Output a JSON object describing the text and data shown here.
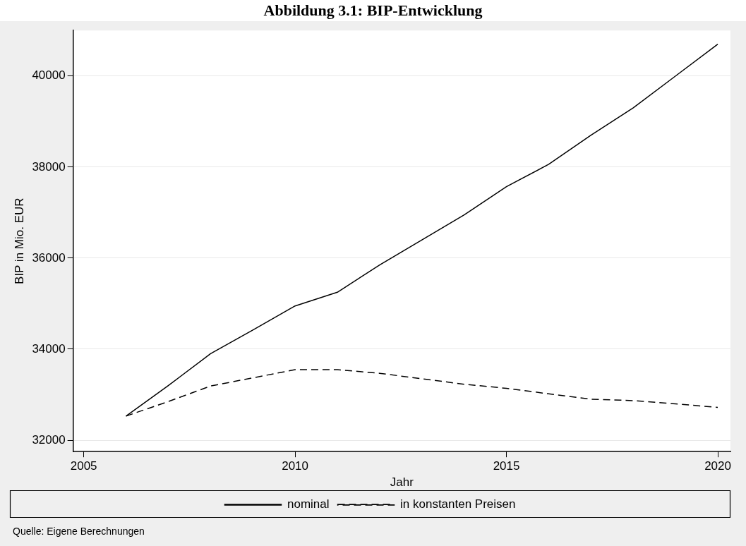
{
  "chart_data": {
    "type": "line",
    "title": "Abbildung 3.1: BIP-Entwicklung",
    "xlabel": "Jahr",
    "ylabel": "BIP in Mio. EUR",
    "x": [
      2006,
      2007,
      2008,
      2009,
      2010,
      2011,
      2012,
      2013,
      2014,
      2015,
      2016,
      2017,
      2018,
      2019,
      2020
    ],
    "series": [
      {
        "name": "nominal",
        "color": "#000000",
        "line_style": "solid",
        "values": [
          32530,
          33200,
          33900,
          34420,
          34950,
          35250,
          35850,
          36400,
          36950,
          37570,
          38060,
          38700,
          39300,
          40000,
          40700
        ]
      },
      {
        "name": "in konstanten Preisen",
        "color": "#000000",
        "line_style": "dashed",
        "values": [
          32530,
          32850,
          33190,
          33370,
          33550,
          33550,
          33470,
          33350,
          33230,
          33140,
          33020,
          32900,
          32870,
          32800,
          32720
        ]
      }
    ],
    "xlim": [
      2004.75,
      2020.3
    ],
    "xticks": [
      2005,
      2010,
      2015,
      2020
    ],
    "ylim": [
      31750,
      41000
    ],
    "yticks": [
      32000,
      34000,
      36000,
      38000,
      40000
    ],
    "grid": "y",
    "legend": "bottom",
    "marker": "none",
    "annotations": [
      "Quelle: Eigene Berechnungen"
    ]
  }
}
